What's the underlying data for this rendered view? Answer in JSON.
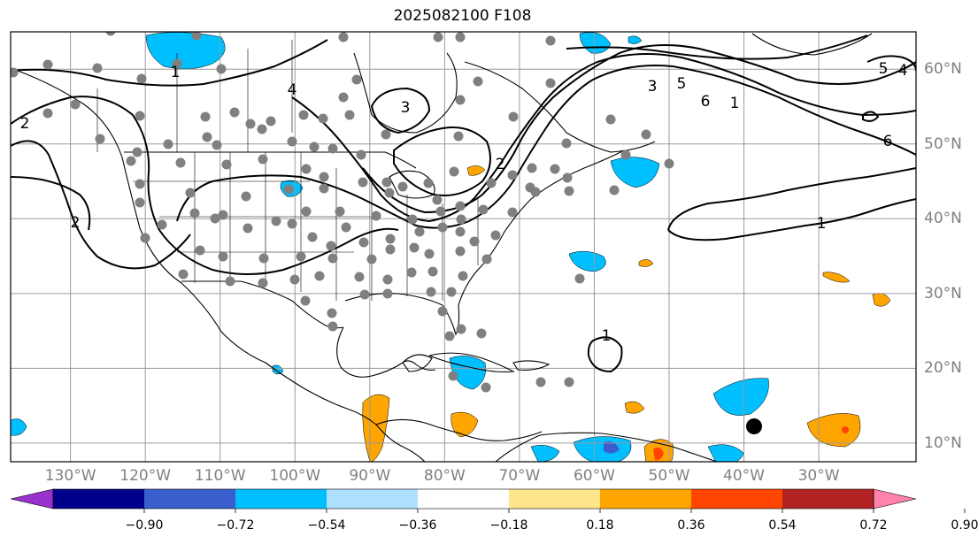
{
  "title": "2025082100 F108",
  "map": {
    "extent_lon": [
      -138,
      -17
    ],
    "extent_lat": [
      7.5,
      65
    ],
    "lon_ticks": [
      -130,
      -120,
      -110,
      -100,
      -90,
      -80,
      -70,
      -60,
      -50,
      -40,
      -30
    ],
    "lat_ticks": [
      10,
      20,
      30,
      40,
      50,
      60
    ],
    "lon_labels": [
      "130°W",
      "120°W",
      "110°W",
      "100°W",
      "90°W",
      "80°W",
      "70°W",
      "60°W",
      "50°W",
      "40°W",
      "30°W"
    ],
    "lat_labels": [
      "60°N",
      "50°N",
      "40°N",
      "30°N",
      "20°N",
      "10°N"
    ],
    "gridlines": true,
    "contour_labels": [
      "1",
      "2",
      "3",
      "4",
      "5",
      "6",
      "1",
      "2",
      "3",
      "1",
      "5",
      "4",
      "1",
      "6",
      "2"
    ]
  },
  "colorbar": {
    "orientation": "horizontal",
    "extend": "both",
    "tick_labels": [
      "−0.90",
      "−0.72",
      "−0.54",
      "−0.36",
      "−0.18",
      "0.18",
      "0.36",
      "0.54",
      "0.72",
      "0.90"
    ],
    "colors": [
      "#9932cc",
      "#00008b",
      "#3a5fcd",
      "#00bfff",
      "#b0e0ff",
      "#ffffff",
      "#ffe58a",
      "#ffa500",
      "#ff4500",
      "#b22222",
      "#ff82ab"
    ]
  },
  "markers": {
    "station_color": "#808080",
    "storm_color": "#000000"
  }
}
